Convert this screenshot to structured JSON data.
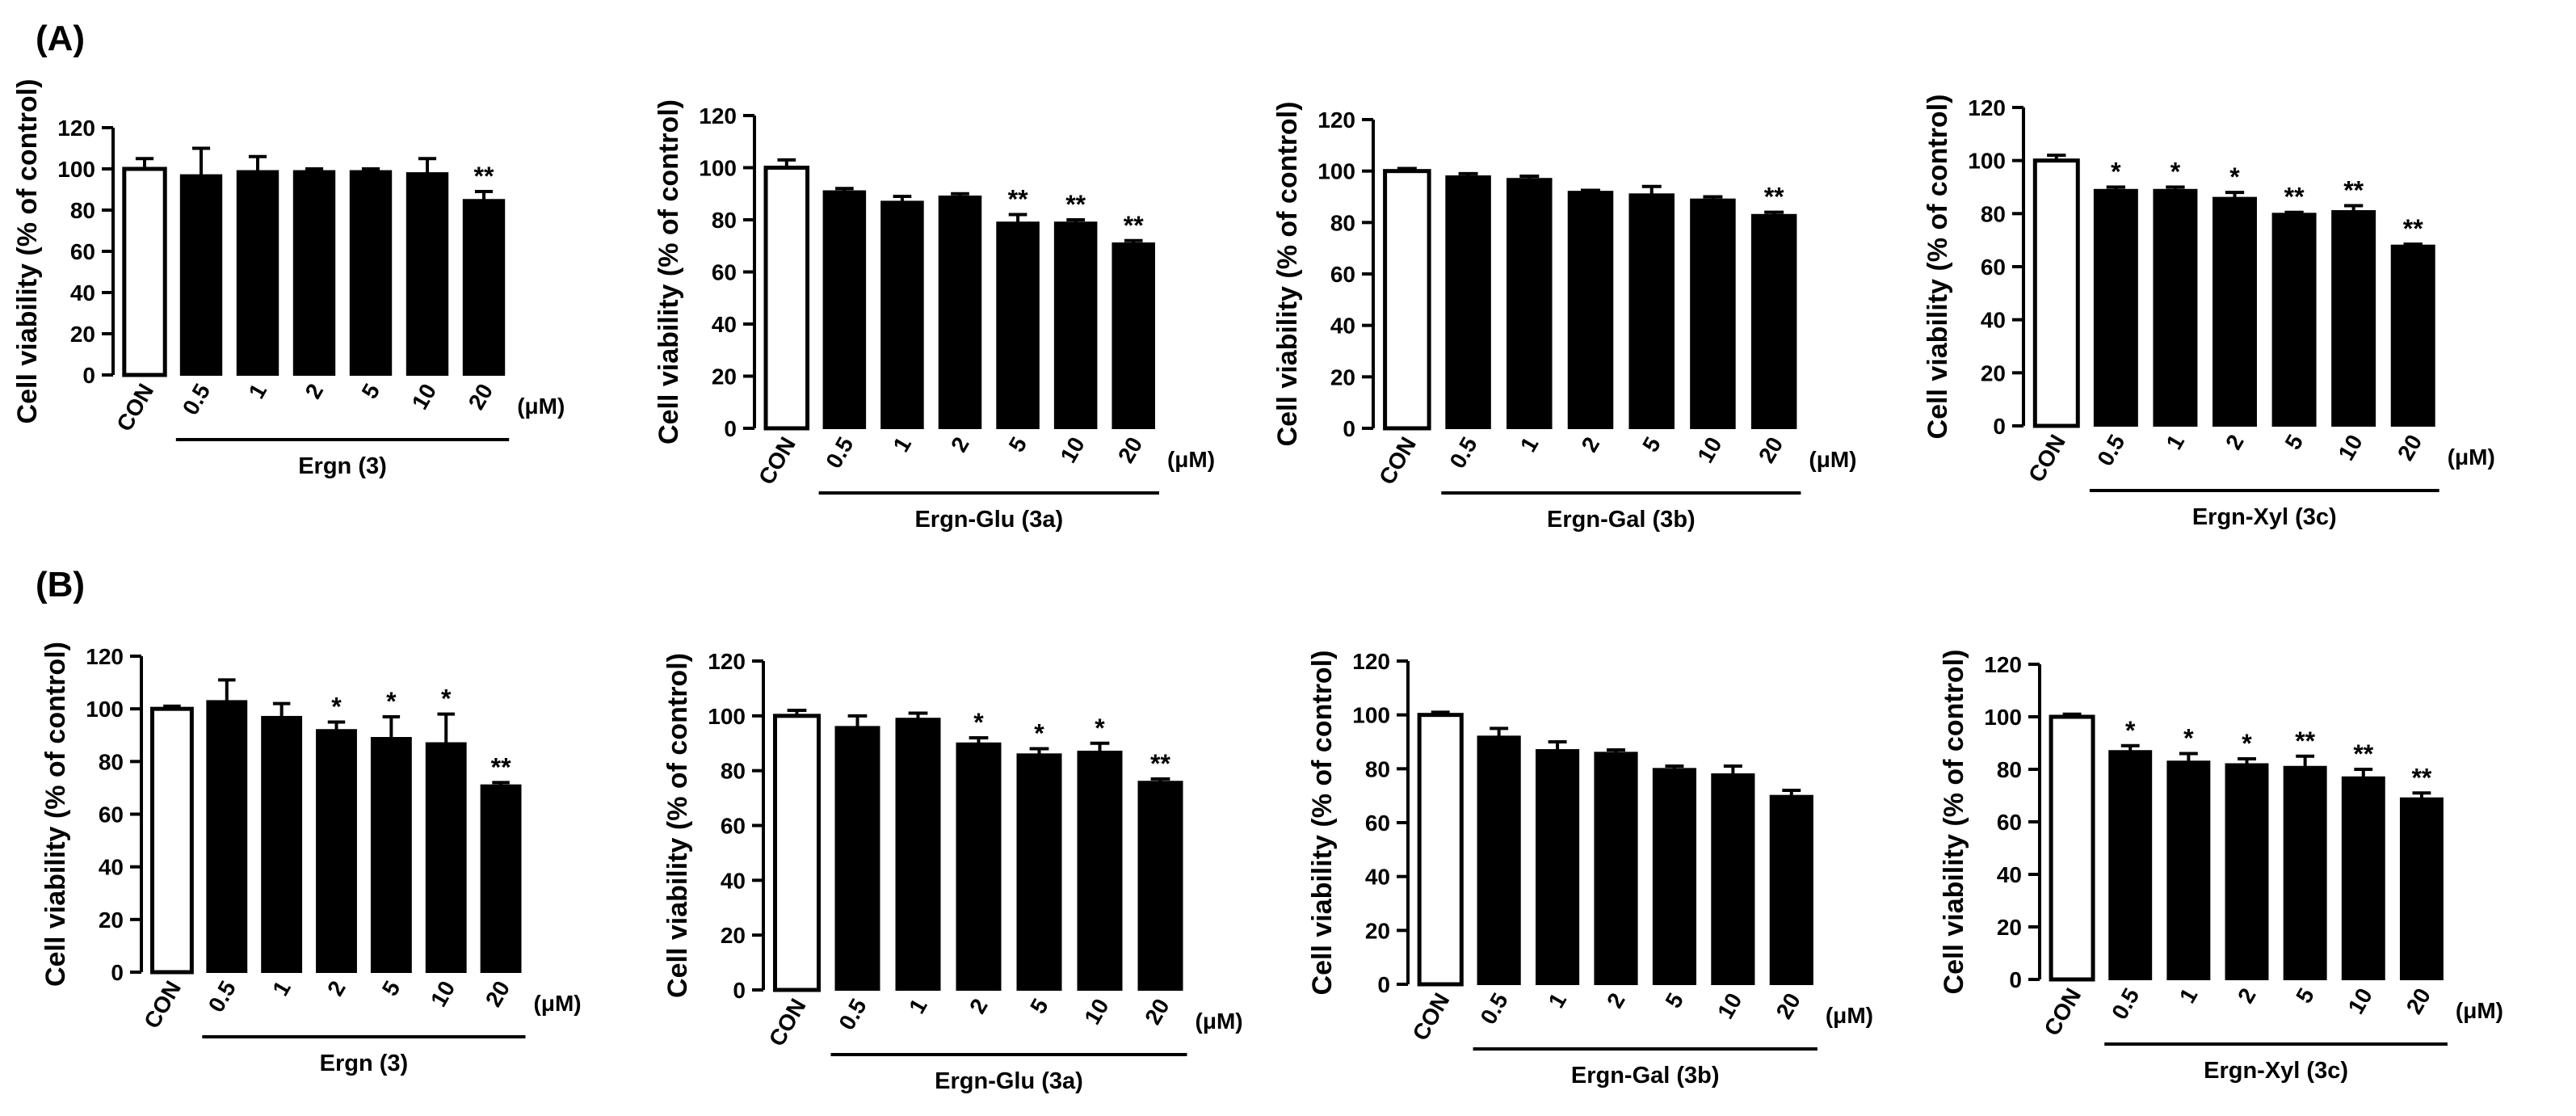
{
  "figure": {
    "panel_labels": [
      "(A)",
      "(B)"
    ]
  },
  "chart_data": [
    {
      "type": "bar",
      "row": "(A)",
      "title": "",
      "xlabel": "Ergn (3)",
      "ylabel": "Cell viability (% of control)",
      "unit": "(μM)",
      "categories": [
        "CON",
        "0.5",
        "1",
        "2",
        "5",
        "10",
        "20"
      ],
      "values": [
        100,
        97,
        99,
        99,
        99,
        98,
        85
      ],
      "errors": [
        5,
        13,
        7,
        1,
        1,
        7,
        4
      ],
      "significance": [
        "",
        "",
        "",
        "",
        "",
        "",
        "**"
      ],
      "ylim": [
        0,
        120
      ],
      "yticks": [
        0,
        20,
        40,
        60,
        80,
        100,
        120
      ]
    },
    {
      "type": "bar",
      "row": "(A)",
      "title": "",
      "xlabel": "Ergn-Glu (3a)",
      "ylabel": "Cell viability (% of control)",
      "unit": "(μM)",
      "categories": [
        "CON",
        "0.5",
        "1",
        "2",
        "5",
        "10",
        "20"
      ],
      "values": [
        100,
        91,
        87,
        89,
        79,
        79,
        71
      ],
      "errors": [
        3,
        1,
        2,
        1,
        3,
        1,
        1
      ],
      "significance": [
        "",
        "",
        "",
        "",
        "**",
        "**",
        "**"
      ],
      "ylim": [
        0,
        120
      ],
      "yticks": [
        0,
        20,
        40,
        60,
        80,
        100,
        120
      ]
    },
    {
      "type": "bar",
      "row": "(A)",
      "title": "",
      "xlabel": "Ergn-Gal (3b)",
      "ylabel": "Cell viability (% of control)",
      "unit": "(μM)",
      "categories": [
        "CON",
        "0.5",
        "1",
        "2",
        "5",
        "10",
        "20"
      ],
      "values": [
        100,
        98,
        97,
        92,
        91,
        89,
        83
      ],
      "errors": [
        1,
        1,
        1,
        0.5,
        3,
        1,
        1
      ],
      "significance": [
        "",
        "",
        "",
        "",
        "",
        "",
        "**"
      ],
      "ylim": [
        0,
        120
      ],
      "yticks": [
        0,
        20,
        40,
        60,
        80,
        100,
        120
      ]
    },
    {
      "type": "bar",
      "row": "(A)",
      "title": "",
      "xlabel": "Ergn-Xyl (3c)",
      "ylabel": "Cell viability (% of control)",
      "unit": "(μM)",
      "categories": [
        "CON",
        "0.5",
        "1",
        "2",
        "5",
        "10",
        "20"
      ],
      "values": [
        100,
        89,
        89,
        86,
        80,
        81,
        68
      ],
      "errors": [
        2,
        1,
        1,
        2,
        0.5,
        2,
        0.5
      ],
      "significance": [
        "",
        "*",
        "*",
        "*",
        "**",
        "**",
        "**"
      ],
      "ylim": [
        0,
        120
      ],
      "yticks": [
        0,
        20,
        40,
        60,
        80,
        100,
        120
      ]
    },
    {
      "type": "bar",
      "row": "(B)",
      "title": "",
      "xlabel": "Ergn (3)",
      "ylabel": "Cell viability (% of control)",
      "unit": "(μM)",
      "categories": [
        "CON",
        "0.5",
        "1",
        "2",
        "5",
        "10",
        "20"
      ],
      "values": [
        100,
        103,
        97,
        92,
        89,
        87,
        71
      ],
      "errors": [
        1,
        8,
        5,
        3,
        8,
        11,
        1
      ],
      "significance": [
        "",
        "",
        "",
        "*",
        "*",
        "*",
        "**"
      ],
      "ylim": [
        0,
        120
      ],
      "yticks": [
        0,
        20,
        40,
        60,
        80,
        100,
        120
      ]
    },
    {
      "type": "bar",
      "row": "(B)",
      "title": "",
      "xlabel": "Ergn-Glu (3a)",
      "ylabel": "Cell viability (% of control)",
      "unit": "(μM)",
      "categories": [
        "CON",
        "0.5",
        "1",
        "2",
        "5",
        "10",
        "20"
      ],
      "values": [
        100,
        96,
        99,
        90,
        86,
        87,
        76
      ],
      "errors": [
        2,
        4,
        2,
        2,
        2,
        3,
        1
      ],
      "significance": [
        "",
        "",
        "",
        "*",
        "*",
        "*",
        "**"
      ],
      "ylim": [
        0,
        120
      ],
      "yticks": [
        0,
        20,
        40,
        60,
        80,
        100,
        120
      ]
    },
    {
      "type": "bar",
      "row": "(B)",
      "title": "",
      "xlabel": "Ergn-Gal (3b)",
      "ylabel": "Cell viability (% of control)",
      "unit": "(μM)",
      "categories": [
        "CON",
        "0.5",
        "1",
        "2",
        "5",
        "10",
        "20"
      ],
      "values": [
        100,
        92,
        87,
        86,
        80,
        78,
        70
      ],
      "errors": [
        1,
        3,
        3,
        1,
        1,
        3,
        2
      ],
      "significance": [
        "",
        "",
        "",
        "",
        "",
        "",
        ""
      ],
      "ylim": [
        0,
        120
      ],
      "yticks": [
        0,
        20,
        40,
        60,
        80,
        100,
        120
      ]
    },
    {
      "type": "bar",
      "row": "(B)",
      "title": "",
      "xlabel": "Ergn-Xyl (3c)",
      "ylabel": "Cell viability (% of control)",
      "unit": "(μM)",
      "categories": [
        "CON",
        "0.5",
        "1",
        "2",
        "5",
        "10",
        "20"
      ],
      "values": [
        100,
        87,
        83,
        82,
        81,
        77,
        69
      ],
      "errors": [
        1,
        2,
        3,
        2,
        4,
        3,
        2
      ],
      "significance": [
        "",
        "*",
        "*",
        "*",
        "**",
        "**",
        "**"
      ],
      "ylim": [
        0,
        120
      ],
      "yticks": [
        0,
        20,
        40,
        60,
        80,
        100,
        120
      ]
    }
  ]
}
